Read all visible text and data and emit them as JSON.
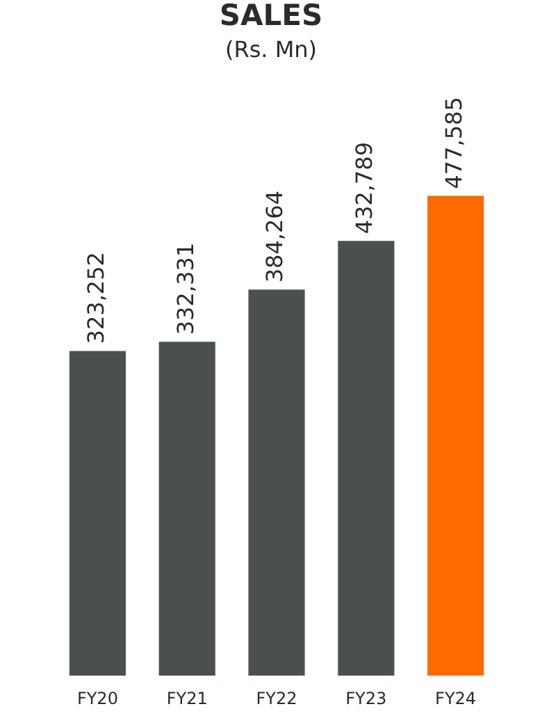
{
  "chart_data": {
    "type": "bar",
    "title": "SALES",
    "subtitle": "(Rs. Mn)",
    "categories": [
      "FY20",
      "FY21",
      "FY22",
      "FY23",
      "FY24"
    ],
    "values": [
      323252,
      332331,
      384264,
      432789,
      477585
    ],
    "value_labels": [
      "323,252",
      "332,331",
      "384,264",
      "432,789",
      "477,585"
    ],
    "colors": [
      "#4a4f4f",
      "#4a4f4f",
      "#4a4f4f",
      "#4a4f4f",
      "#ff6a00"
    ],
    "tick_labels": "x",
    "grid": false,
    "legend": false
  }
}
